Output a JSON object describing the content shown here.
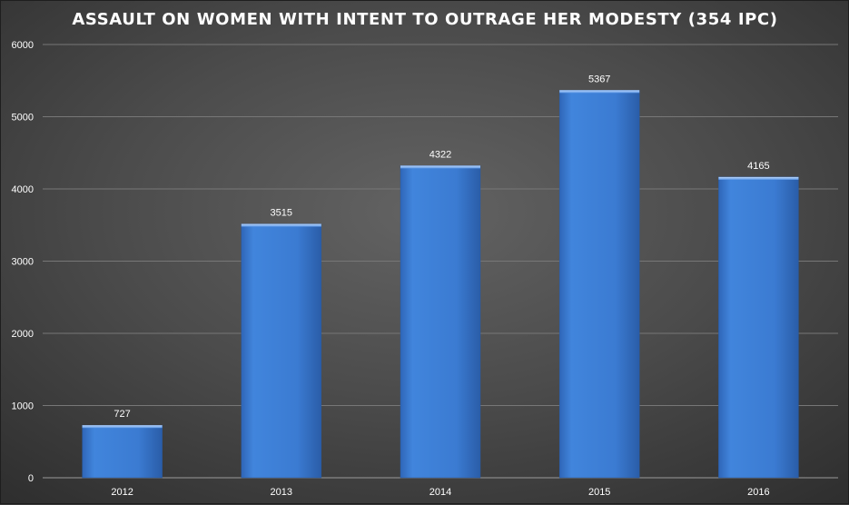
{
  "chart_data": {
    "type": "bar",
    "title": "ASSAULT ON WOMEN WITH INTENT TO OUTRAGE HER MODESTY (354 IPC)",
    "categories": [
      "2012",
      "2013",
      "2014",
      "2015",
      "2016"
    ],
    "values": [
      727,
      3515,
      4322,
      5367,
      4165
    ],
    "ylim": [
      0,
      6000
    ],
    "yticks": [
      "0",
      "1000",
      "2000",
      "3000",
      "4000",
      "5000",
      "6000"
    ],
    "grid": true,
    "legend": "none",
    "data_labels": true,
    "bar_color": "#3f7fd6",
    "background_color": "#4d4d4d"
  }
}
